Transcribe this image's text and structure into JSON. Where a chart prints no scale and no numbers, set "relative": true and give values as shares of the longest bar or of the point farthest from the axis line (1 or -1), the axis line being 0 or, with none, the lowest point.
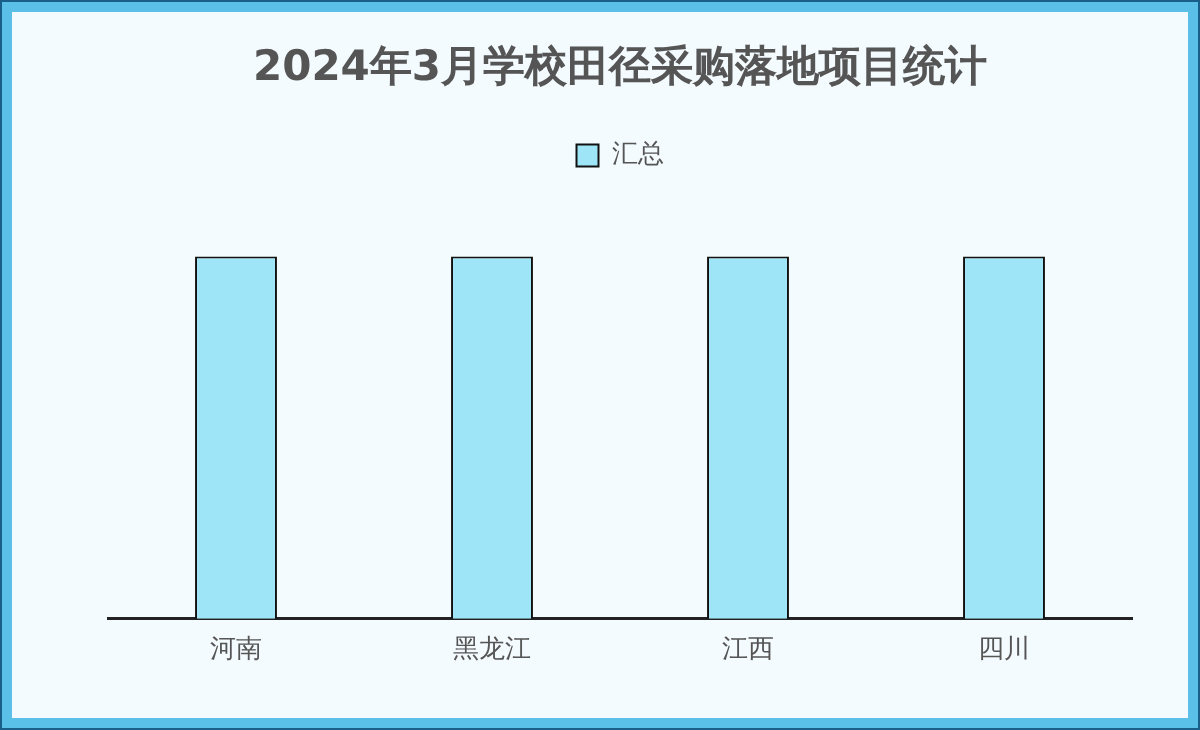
{
  "chart_data": {
    "type": "bar",
    "title": "2024年3月学校田径采购落地项目统计",
    "categories": [
      "河南",
      "黑龙江",
      "江西",
      "四川"
    ],
    "relative": true,
    "series": [
      {
        "name": "汇总",
        "color": "#9ee6f7",
        "values": [
          1,
          1,
          1,
          1
        ]
      }
    ],
    "legend": "top",
    "grid": false
  }
}
